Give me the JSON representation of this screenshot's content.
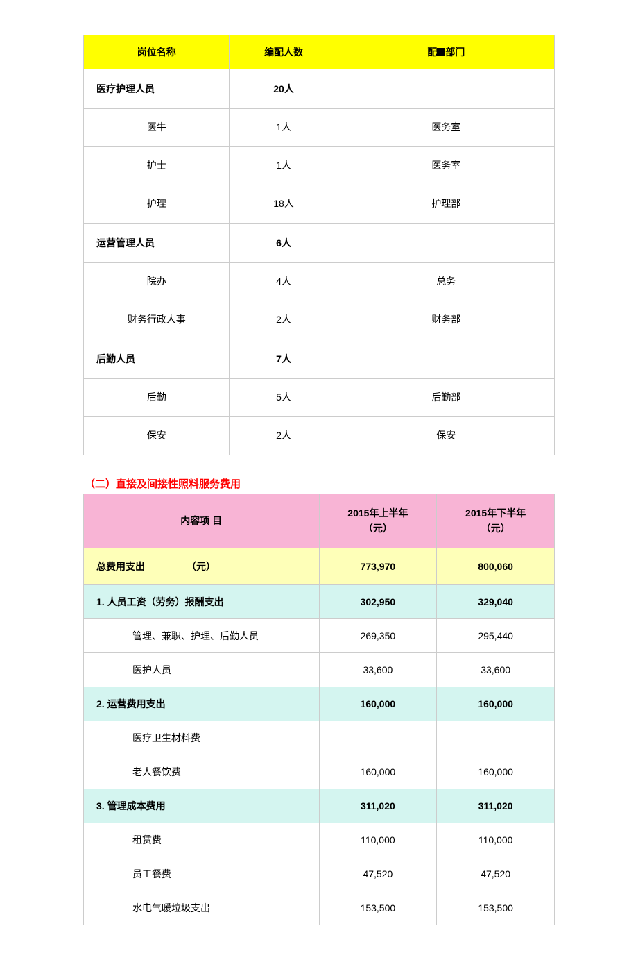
{
  "table1": {
    "header_bg": "#ffff00",
    "header_color": "#000000",
    "columns": [
      "岗位名称",
      "编配人数",
      "配■部门"
    ],
    "col_widths": [
      "31%",
      "23%",
      "46%"
    ],
    "groups": [
      {
        "category": "医疗护理人员",
        "count": "20人",
        "dept": "",
        "items": [
          {
            "name": "医牛",
            "count": "1人",
            "dept": "医务室"
          },
          {
            "name": "护士",
            "count": "1人",
            "dept": "医务室"
          },
          {
            "name": "护理",
            "count": "18人",
            "dept": "护理部"
          }
        ]
      },
      {
        "category": "运营管理人员",
        "count": "6人",
        "dept": "",
        "items": [
          {
            "name": "院办",
            "count": "4人",
            "dept": "总务"
          },
          {
            "name": "财务行政人事",
            "count": "2人",
            "dept": "财务部"
          }
        ]
      },
      {
        "category": "后勤人员",
        "count": "7人",
        "dept": "",
        "items": [
          {
            "name": "后勤",
            "count": "5人",
            "dept": "后勤部"
          },
          {
            "name": "保安",
            "count": "2人",
            "dept": "保安"
          }
        ]
      }
    ]
  },
  "section2_title": "（二）直接及间接性照料服务费用",
  "table2": {
    "header_bg": "#f8b4d5",
    "total_bg": "#feffb8",
    "group_bg": "#d4f5f0",
    "item_bg": "#ffffff",
    "col_widths": [
      "50%",
      "25%",
      "25%"
    ],
    "columns": {
      "c1": "内容项 目",
      "c2_l1": "2015年上半年",
      "c2_l2": "（元）",
      "c3_l1": "2015年下半年",
      "c3_l2": "（元）"
    },
    "total_row": {
      "label_a": "总费用支出",
      "label_b": "（元）",
      "h1": "773,970",
      "h2": "800,060"
    },
    "sections": [
      {
        "title": "1. 人员工资（劳务）报酬支出",
        "h1": "302,950",
        "h2": "329,040",
        "items": [
          {
            "name": "管理、兼职、护理、后勤人员",
            "h1": "269,350",
            "h2": "295,440"
          },
          {
            "name": "医护人员",
            "h1": "33,600",
            "h2": "33,600"
          }
        ]
      },
      {
        "title": "2. 运营费用支出",
        "h1": "160,000",
        "h2": "160,000",
        "items": [
          {
            "name": "医疗卫生材料费",
            "h1": "",
            "h2": ""
          },
          {
            "name": "老人餐饮费",
            "h1": "160,000",
            "h2": "160,000"
          }
        ]
      },
      {
        "title": "3. 管理成本费用",
        "h1": "311,020",
        "h2": "311,020",
        "items": [
          {
            "name": "租赁费",
            "h1": "110,000",
            "h2": "110,000"
          },
          {
            "name": "员工餐费",
            "h1": "47,520",
            "h2": "47,520"
          },
          {
            "name": "水电气暖垃圾支出",
            "h1": "153,500",
            "h2": "153,500"
          }
        ]
      }
    ]
  }
}
